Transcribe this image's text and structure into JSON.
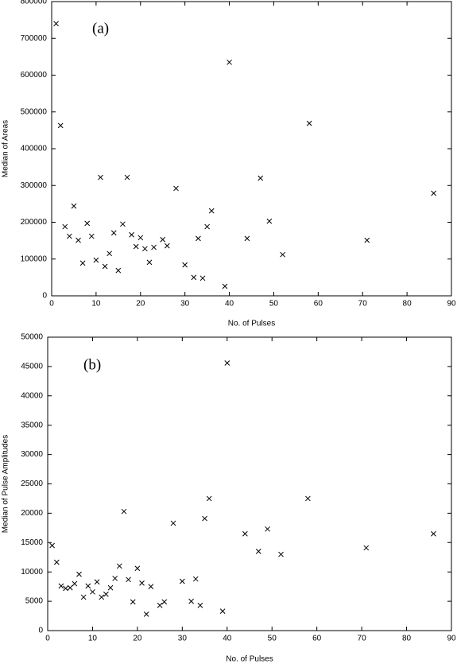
{
  "chart_data": [
    {
      "type": "scatter",
      "annotation": "(a)",
      "xlabel": "No. of Pulses",
      "ylabel": "Median of Areas",
      "color": "#000000",
      "x": [
        1,
        2,
        3,
        4,
        5,
        6,
        7,
        8,
        9,
        10,
        11,
        12,
        13,
        14,
        15,
        16,
        17,
        18,
        19,
        20,
        21,
        22,
        23,
        25,
        26,
        28,
        30,
        32,
        33,
        34,
        35,
        36,
        39,
        40,
        44,
        47,
        49,
        52,
        58,
        71,
        86
      ],
      "values": [
        740000,
        463000,
        188000,
        162000,
        244000,
        151000,
        89000,
        197000,
        162000,
        97000,
        322000,
        80000,
        115000,
        171000,
        69000,
        195000,
        322000,
        166000,
        134000,
        158000,
        128000,
        91000,
        132000,
        153000,
        136000,
        292000,
        84000,
        50000,
        156000,
        48000,
        188000,
        231000,
        26000,
        635000,
        156000,
        320000,
        203000,
        112000,
        469000,
        151000,
        279000
      ],
      "xlim": [
        0,
        90
      ],
      "ylim": [
        0,
        800000
      ],
      "xticks": [
        0,
        10,
        20,
        30,
        40,
        50,
        60,
        70,
        80,
        90
      ],
      "yticks": [
        0,
        100000,
        200000,
        300000,
        400000,
        500000,
        600000,
        700000,
        800000
      ]
    },
    {
      "type": "scatter",
      "annotation": "(b)",
      "xlabel": "No. of Pulses",
      "ylabel": "Median of Pulse Amplitudes",
      "color": "#000000",
      "x": [
        1,
        2,
        3,
        4,
        5,
        6,
        7,
        8,
        9,
        10,
        11,
        12,
        13,
        14,
        15,
        16,
        17,
        18,
        19,
        20,
        21,
        22,
        23,
        25,
        26,
        28,
        30,
        32,
        33,
        34,
        35,
        36,
        39,
        40,
        44,
        47,
        49,
        52,
        58,
        71,
        86
      ],
      "values": [
        14500,
        11650,
        7600,
        7200,
        7300,
        8000,
        9600,
        5700,
        7600,
        6600,
        8300,
        5700,
        6200,
        7300,
        8900,
        11000,
        20300,
        8700,
        4900,
        10600,
        8100,
        2800,
        7500,
        4300,
        4900,
        18300,
        8400,
        5000,
        8800,
        4300,
        19100,
        22500,
        3300,
        45600,
        16500,
        13500,
        17300,
        13000,
        22500,
        14100,
        16500
      ],
      "xlim": [
        0,
        90
      ],
      "ylim": [
        0,
        50000
      ],
      "xticks": [
        0,
        10,
        20,
        30,
        40,
        50,
        60,
        70,
        80,
        90
      ],
      "yticks": [
        0,
        5000,
        10000,
        15000,
        20000,
        25000,
        30000,
        35000,
        40000,
        45000,
        50000
      ]
    }
  ]
}
